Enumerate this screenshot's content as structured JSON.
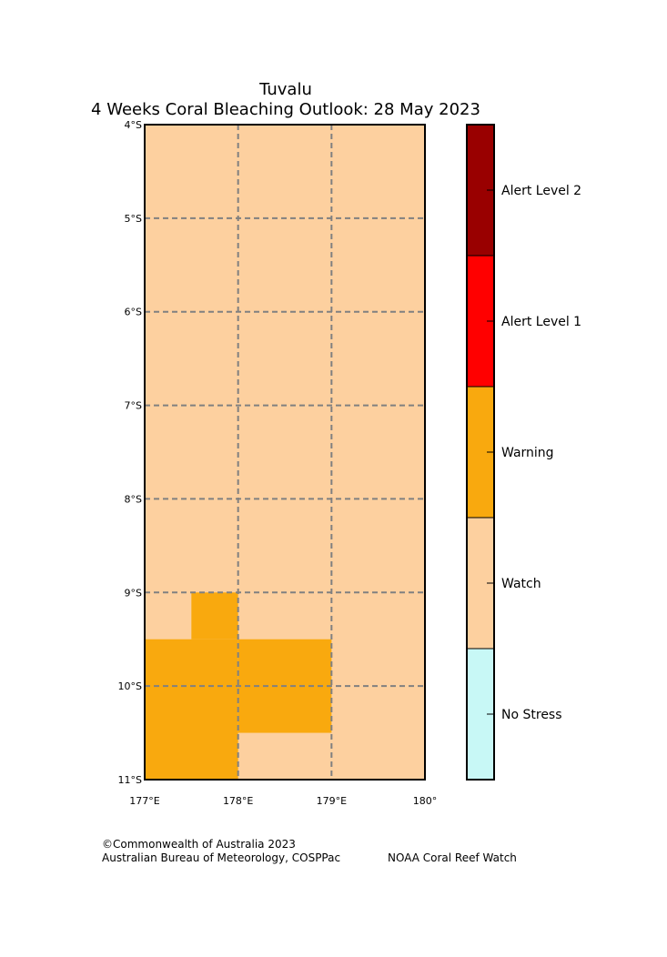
{
  "title": "Tuvalu",
  "subtitle": "4 Weeks Coral Bleaching Outlook: 28 May 2023",
  "footer": {
    "copyright": "©Commonwealth of Australia 2023",
    "agencies": "Australian Bureau of Meteorology, COSPPac",
    "noaa": "NOAA Coral Reef Watch"
  },
  "chart_data": {
    "type": "heatmap",
    "title": "Tuvalu",
    "subtitle": "4 Weeks Coral Bleaching Outlook: 28 May 2023",
    "xlim": [
      177,
      180
    ],
    "ylim": [
      -11,
      -4
    ],
    "x_ticks": [
      {
        "value": 177,
        "label": "177°E"
      },
      {
        "value": 178,
        "label": "178°E"
      },
      {
        "value": 179,
        "label": "179°E"
      },
      {
        "value": 180,
        "label": "180°"
      }
    ],
    "y_ticks": [
      {
        "value": -4,
        "label": "4°S"
      },
      {
        "value": -5,
        "label": "5°S"
      },
      {
        "value": -6,
        "label": "6°S"
      },
      {
        "value": -7,
        "label": "7°S"
      },
      {
        "value": -8,
        "label": "8°S"
      },
      {
        "value": -9,
        "label": "9°S"
      },
      {
        "value": -10,
        "label": "10°S"
      },
      {
        "value": -11,
        "label": "11°S"
      }
    ],
    "grid": true,
    "cell_size_deg": 0.5,
    "background_category": "Watch",
    "cells": [
      {
        "lon": [
          177.5,
          178.0
        ],
        "lat": [
          -9.5,
          -9.0
        ],
        "category": "Warning"
      },
      {
        "lon": [
          177.0,
          178.0
        ],
        "lat": [
          -11.0,
          -9.5
        ],
        "category": "Warning"
      },
      {
        "lon": [
          178.0,
          179.0
        ],
        "lat": [
          -10.5,
          -9.5
        ],
        "category": "Warning"
      }
    ],
    "legend": {
      "placement": "right",
      "categories": [
        {
          "label": "Alert Level 2",
          "color": "#990000"
        },
        {
          "label": "Alert Level 1",
          "color": "#ff0000"
        },
        {
          "label": "Warning",
          "color": "#f9a90e"
        },
        {
          "label": "Watch",
          "color": "#fdd09f"
        },
        {
          "label": "No Stress",
          "color": "#c8f8f6"
        }
      ]
    }
  }
}
